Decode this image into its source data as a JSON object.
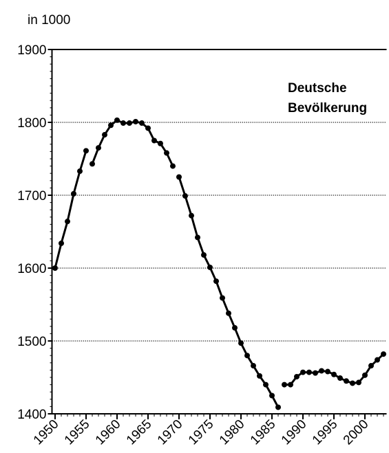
{
  "chart_data": {
    "type": "line",
    "y_label": "in 1000",
    "annotation": [
      "Deutsche",
      "Bevölkerung"
    ],
    "color": "#000000",
    "grid": true,
    "xlim": [
      1949.5,
      2003.5
    ],
    "ylim": [
      1400,
      1900
    ],
    "xticks": [
      1950,
      1955,
      1960,
      1965,
      1970,
      1975,
      1980,
      1985,
      1990,
      1995,
      2000
    ],
    "yticks": [
      1400,
      1500,
      1600,
      1700,
      1800,
      1900
    ],
    "series": [
      {
        "x": [
          1950,
          1951,
          1952,
          1953,
          1954,
          1955
        ],
        "values": [
          1600,
          1634,
          1664,
          1702,
          1733,
          1761
        ]
      },
      {
        "x": [
          1956,
          1957,
          1958,
          1959,
          1960,
          1961,
          1962,
          1963,
          1964,
          1965,
          1966,
          1967,
          1968,
          1969
        ],
        "values": [
          1743,
          1765,
          1783,
          1796,
          1803,
          1799,
          1799,
          1801,
          1799,
          1792,
          1775,
          1771,
          1758,
          1740
        ]
      },
      {
        "x": [
          1970,
          1971,
          1972,
          1973,
          1974,
          1975,
          1976,
          1977,
          1978,
          1979,
          1980,
          1981,
          1982,
          1983,
          1984,
          1985,
          1986
        ],
        "values": [
          1725,
          1699,
          1672,
          1642,
          1618,
          1601,
          1582,
          1559,
          1538,
          1518,
          1497,
          1480,
          1466,
          1452,
          1440,
          1425,
          1409
        ]
      },
      {
        "x": [
          1987,
          1988,
          1989,
          1990,
          1991,
          1992,
          1993,
          1994,
          1995,
          1996,
          1997,
          1998,
          1999,
          2000,
          2001,
          2002,
          2003
        ],
        "values": [
          1440,
          1440,
          1451,
          1457,
          1457,
          1456,
          1459,
          1458,
          1454,
          1449,
          1445,
          1442,
          1443,
          1453,
          1466,
          1474,
          1482
        ]
      }
    ]
  }
}
